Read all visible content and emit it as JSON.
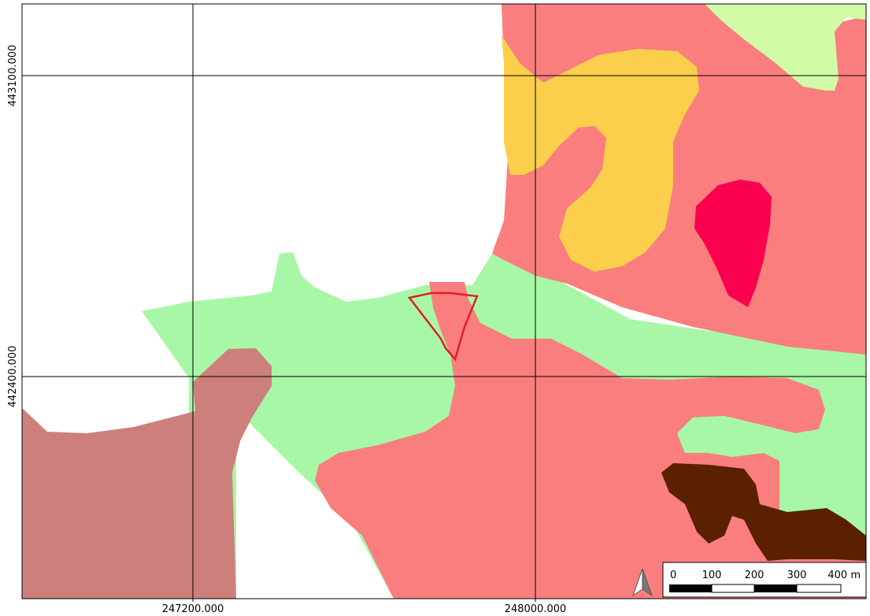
{
  "map": {
    "grid": {
      "x_labels": [
        "247200.000",
        "248000.000"
      ],
      "y_labels": [
        "443100.000",
        "442400.000"
      ]
    },
    "scale_bar": {
      "labels": [
        "0",
        "100",
        "200",
        "300",
        "400 m"
      ]
    },
    "north_arrow_icon": "north-arrow-icon",
    "colors": {
      "light_green": "#a8f7a7",
      "salmon": "#fa7e7e",
      "yellow": "#fbcf4c",
      "lime": "#d2fba7",
      "crimson": "#fc0050",
      "dusty_rose": "#cd7f7c",
      "dark_brown": "#5a2000",
      "outline_red": "#dd2222"
    }
  }
}
